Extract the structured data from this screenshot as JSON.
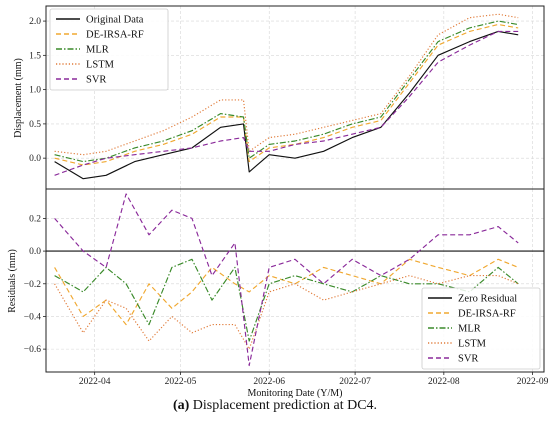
{
  "caption": {
    "label": "(a)",
    "text": "Displacement prediction at DC4."
  },
  "colors": {
    "Original Data": "#111111",
    "DE-IRSA-RF": "#f0a830",
    "MLR": "#3a8a2a",
    "LSTM": "#e07a38",
    "SVR": "#8a2a9a",
    "Zero Residual": "#111111"
  },
  "chart_data": [
    {
      "type": "line",
      "ylabel": "Displacement (mm)",
      "xlabel": "",
      "ylim": [
        -0.45,
        2.22
      ],
      "yticks": [
        "0.0",
        "0.5",
        "1.0",
        "1.5",
        "2.0"
      ],
      "legend_position": "top-left",
      "grid": true,
      "series": [
        {
          "name": "Original Data",
          "style": "solid",
          "x": [
            "2022-03-18",
            "2022-03-28",
            "2022-04-05",
            "2022-04-15",
            "2022-04-25",
            "2022-05-05",
            "2022-05-15",
            "2022-05-23",
            "2022-05-25",
            "2022-06-01",
            "2022-06-10",
            "2022-06-20",
            "2022-06-30",
            "2022-07-10",
            "2022-07-20",
            "2022-07-30",
            "2022-08-10",
            "2022-08-20",
            "2022-08-27"
          ],
          "y": [
            -0.05,
            -0.3,
            -0.25,
            -0.05,
            0.05,
            0.15,
            0.45,
            0.5,
            -0.2,
            0.05,
            0.0,
            0.1,
            0.3,
            0.45,
            0.95,
            1.5,
            1.7,
            1.85,
            1.8
          ]
        },
        {
          "name": "DE-IRSA-RF",
          "style": "dashed",
          "x": [
            "2022-03-18",
            "2022-03-28",
            "2022-04-05",
            "2022-04-15",
            "2022-04-25",
            "2022-05-05",
            "2022-05-15",
            "2022-05-23",
            "2022-05-25",
            "2022-06-01",
            "2022-06-10",
            "2022-06-20",
            "2022-06-30",
            "2022-07-10",
            "2022-07-20",
            "2022-07-30",
            "2022-08-10",
            "2022-08-20",
            "2022-08-27"
          ],
          "y": [
            0.0,
            -0.1,
            -0.05,
            0.1,
            0.2,
            0.35,
            0.6,
            0.6,
            -0.05,
            0.15,
            0.2,
            0.3,
            0.45,
            0.55,
            1.1,
            1.65,
            1.85,
            1.95,
            1.9
          ]
        },
        {
          "name": "MLR",
          "style": "dashdot",
          "x": [
            "2022-03-18",
            "2022-03-28",
            "2022-04-05",
            "2022-04-15",
            "2022-04-25",
            "2022-05-05",
            "2022-05-15",
            "2022-05-23",
            "2022-05-25",
            "2022-06-01",
            "2022-06-10",
            "2022-06-20",
            "2022-06-30",
            "2022-07-10",
            "2022-07-20",
            "2022-07-30",
            "2022-08-10",
            "2022-08-20",
            "2022-08-27"
          ],
          "y": [
            0.05,
            -0.05,
            0.0,
            0.15,
            0.25,
            0.4,
            0.65,
            0.6,
            0.0,
            0.2,
            0.25,
            0.35,
            0.5,
            0.6,
            1.15,
            1.7,
            1.9,
            2.0,
            1.95
          ]
        },
        {
          "name": "LSTM",
          "style": "dotted",
          "x": [
            "2022-03-18",
            "2022-03-28",
            "2022-04-05",
            "2022-04-15",
            "2022-04-25",
            "2022-05-05",
            "2022-05-15",
            "2022-05-23",
            "2022-05-25",
            "2022-06-01",
            "2022-06-10",
            "2022-06-20",
            "2022-06-30",
            "2022-07-10",
            "2022-07-20",
            "2022-07-30",
            "2022-08-10",
            "2022-08-20",
            "2022-08-27"
          ],
          "y": [
            0.1,
            0.05,
            0.1,
            0.25,
            0.4,
            0.6,
            0.85,
            0.85,
            0.1,
            0.3,
            0.35,
            0.45,
            0.55,
            0.65,
            1.2,
            1.8,
            2.05,
            2.1,
            2.05
          ]
        },
        {
          "name": "SVR",
          "style": "dashed",
          "x": [
            "2022-03-18",
            "2022-03-28",
            "2022-04-05",
            "2022-04-15",
            "2022-04-25",
            "2022-05-05",
            "2022-05-15",
            "2022-05-23",
            "2022-05-25",
            "2022-06-01",
            "2022-06-10",
            "2022-06-20",
            "2022-06-30",
            "2022-07-10",
            "2022-07-20",
            "2022-07-30",
            "2022-08-10",
            "2022-08-20",
            "2022-08-27"
          ],
          "y": [
            -0.25,
            -0.1,
            0.0,
            0.05,
            0.1,
            0.15,
            0.25,
            0.3,
            0.1,
            0.1,
            0.2,
            0.25,
            0.35,
            0.45,
            0.9,
            1.4,
            1.65,
            1.85,
            1.85
          ]
        }
      ]
    },
    {
      "type": "line",
      "ylabel": "Residuals (mm)",
      "xlabel": "Monitoring Date (Y/M)",
      "ylim": [
        -0.74,
        0.38
      ],
      "yticks": [
        "−0.6",
        "−0.4",
        "−0.2",
        "0.0",
        "0.2"
      ],
      "xticks": [
        "2022-04",
        "2022-05",
        "2022-06",
        "2022-07",
        "2022-08",
        "2022-09"
      ],
      "legend_position": "bottom-right",
      "grid": true,
      "series": [
        {
          "name": "Zero Residual",
          "style": "solid",
          "x": [
            "2022-03-15",
            "2022-09-05"
          ],
          "y": [
            0.0,
            0.0
          ]
        },
        {
          "name": "DE-IRSA-RF",
          "style": "dashed",
          "x": [
            "2022-03-18",
            "2022-03-28",
            "2022-04-05",
            "2022-04-12",
            "2022-04-20",
            "2022-04-28",
            "2022-05-05",
            "2022-05-12",
            "2022-05-20",
            "2022-05-25",
            "2022-06-01",
            "2022-06-10",
            "2022-06-20",
            "2022-06-30",
            "2022-07-10",
            "2022-07-20",
            "2022-07-30",
            "2022-08-10",
            "2022-08-20",
            "2022-08-27"
          ],
          "y": [
            -0.1,
            -0.4,
            -0.3,
            -0.45,
            -0.2,
            -0.35,
            -0.25,
            -0.1,
            -0.2,
            -0.25,
            -0.15,
            -0.2,
            -0.1,
            -0.15,
            -0.2,
            -0.05,
            -0.1,
            -0.15,
            -0.05,
            -0.1
          ]
        },
        {
          "name": "MLR",
          "style": "dashdot",
          "x": [
            "2022-03-18",
            "2022-03-28",
            "2022-04-05",
            "2022-04-12",
            "2022-04-20",
            "2022-04-28",
            "2022-05-05",
            "2022-05-12",
            "2022-05-20",
            "2022-05-25",
            "2022-06-01",
            "2022-06-10",
            "2022-06-20",
            "2022-06-30",
            "2022-07-10",
            "2022-07-20",
            "2022-07-30",
            "2022-08-10",
            "2022-08-20",
            "2022-08-27"
          ],
          "y": [
            -0.15,
            -0.25,
            -0.1,
            -0.2,
            -0.45,
            -0.1,
            -0.05,
            -0.3,
            -0.1,
            -0.55,
            -0.2,
            -0.15,
            -0.2,
            -0.25,
            -0.15,
            -0.2,
            -0.2,
            -0.25,
            -0.1,
            -0.2
          ]
        },
        {
          "name": "LSTM",
          "style": "dotted",
          "x": [
            "2022-03-18",
            "2022-03-28",
            "2022-04-05",
            "2022-04-12",
            "2022-04-20",
            "2022-04-28",
            "2022-05-05",
            "2022-05-12",
            "2022-05-20",
            "2022-05-25",
            "2022-06-01",
            "2022-06-10",
            "2022-06-20",
            "2022-06-30",
            "2022-07-10",
            "2022-07-20",
            "2022-07-30",
            "2022-08-10",
            "2022-08-20",
            "2022-08-27"
          ],
          "y": [
            -0.2,
            -0.5,
            -0.3,
            -0.35,
            -0.55,
            -0.4,
            -0.5,
            -0.45,
            -0.45,
            -0.6,
            -0.25,
            -0.2,
            -0.3,
            -0.25,
            -0.2,
            -0.15,
            -0.2,
            -0.15,
            -0.15,
            -0.2
          ]
        },
        {
          "name": "SVR",
          "style": "dashed",
          "x": [
            "2022-03-18",
            "2022-03-28",
            "2022-04-05",
            "2022-04-12",
            "2022-04-20",
            "2022-04-28",
            "2022-05-05",
            "2022-05-12",
            "2022-05-20",
            "2022-05-25",
            "2022-06-01",
            "2022-06-10",
            "2022-06-20",
            "2022-06-30",
            "2022-07-10",
            "2022-07-20",
            "2022-07-30",
            "2022-08-10",
            "2022-08-20",
            "2022-08-27"
          ],
          "y": [
            0.2,
            0.0,
            -0.1,
            0.35,
            0.1,
            0.25,
            0.2,
            -0.15,
            0.05,
            -0.7,
            -0.1,
            -0.05,
            -0.2,
            -0.05,
            -0.15,
            -0.05,
            0.1,
            0.1,
            0.15,
            0.05
          ]
        }
      ]
    }
  ]
}
